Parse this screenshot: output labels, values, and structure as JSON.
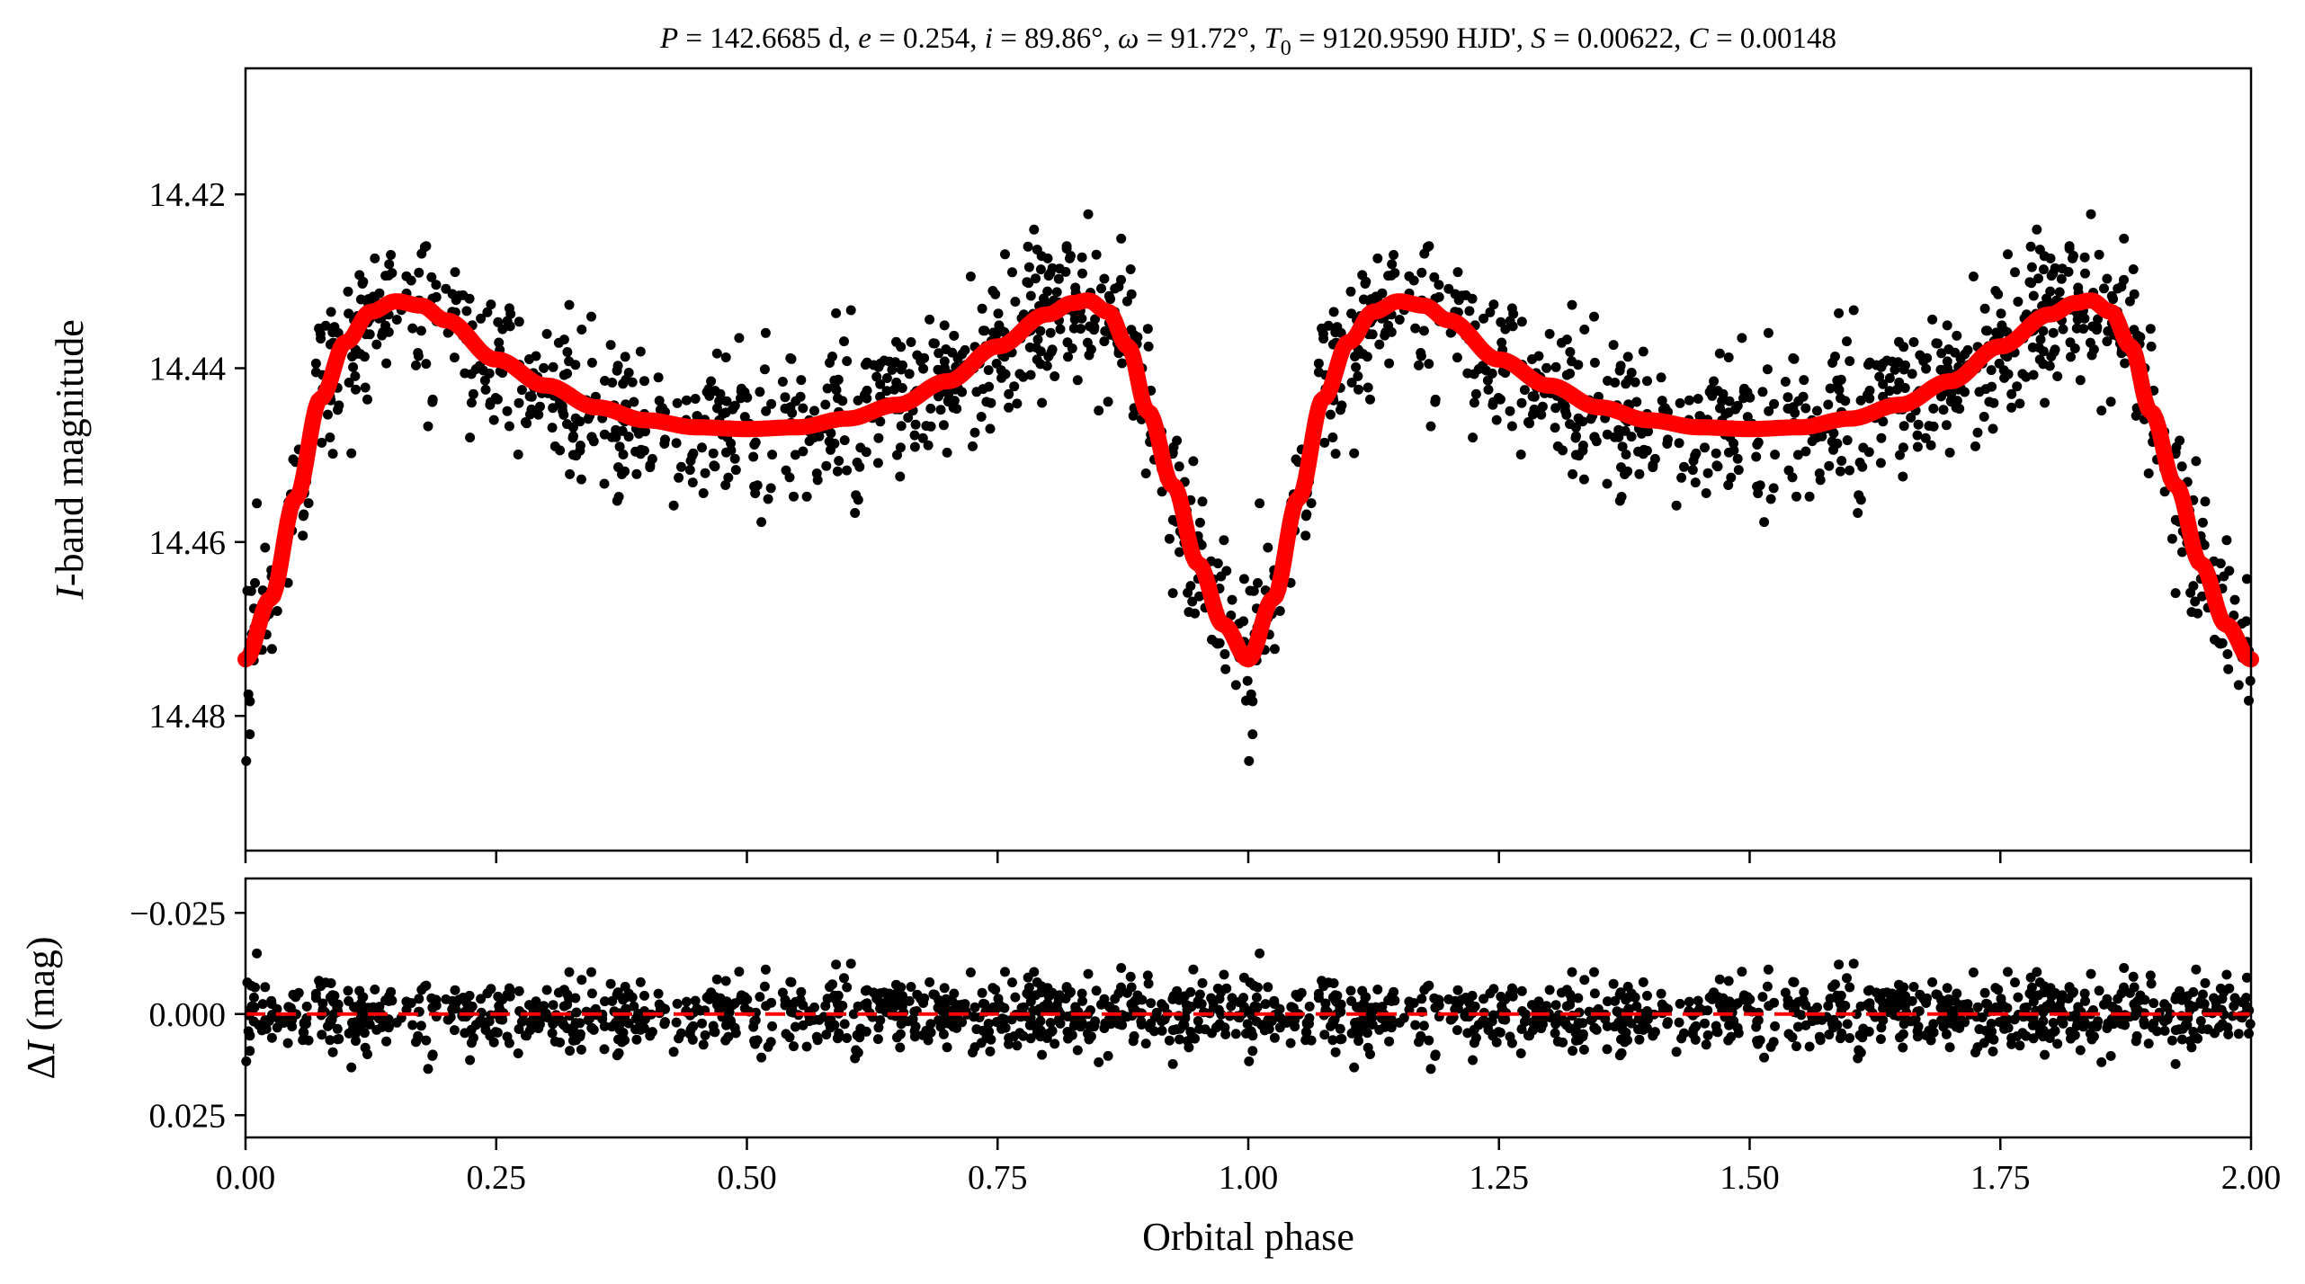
{
  "chart_data": {
    "type": "scatter",
    "title": "P = 142.6685 d, e = 0.254, i = 89.86°, ω = 91.72°, T0 = 9120.9590 HJD', S = 0.00622, C = 0.00148",
    "title_parts": {
      "P": "142.6685 d",
      "e": "0.254",
      "i": "89.86°",
      "omega": "91.72°",
      "T0": "9120.9590 HJD'",
      "S": "0.00622",
      "C": "0.00148"
    },
    "xlabel": "Orbital phase",
    "xlim": [
      0.0,
      2.0
    ],
    "x_ticks": [
      "0.00",
      "0.25",
      "0.50",
      "0.75",
      "1.00",
      "1.25",
      "1.50",
      "1.75",
      "2.00"
    ],
    "top_panel": {
      "ylabel_italic": "I",
      "ylabel_rest": "-band magnitude",
      "ylim": [
        14.4955,
        14.4055
      ],
      "y_inverted": true,
      "y_ticks": [
        "14.42",
        "14.44",
        "14.46",
        "14.48"
      ],
      "model_series": {
        "color": "#ff0000",
        "phase": [
          0.0,
          0.025,
          0.05,
          0.075,
          0.1,
          0.125,
          0.15,
          0.175,
          0.2,
          0.25,
          0.3,
          0.35,
          0.4,
          0.45,
          0.5,
          0.55,
          0.6,
          0.65,
          0.7,
          0.75,
          0.8,
          0.825,
          0.84,
          0.86,
          0.88,
          0.9,
          0.925,
          0.95,
          0.975,
          1.0
        ],
        "mag": [
          14.4735,
          14.4665,
          14.455,
          14.4435,
          14.437,
          14.4335,
          14.4323,
          14.4328,
          14.4345,
          14.439,
          14.442,
          14.4445,
          14.446,
          14.4468,
          14.447,
          14.4468,
          14.4458,
          14.4442,
          14.4415,
          14.4375,
          14.4338,
          14.4325,
          14.4322,
          14.4335,
          14.4375,
          14.445,
          14.4535,
          14.4625,
          14.4695,
          14.4735
        ]
      },
      "observations": {
        "color": "#000000",
        "n_points_per_cycle": 850,
        "scatter_sd_mag": 0.0043,
        "note_points": "dense cloud of observed I-band magnitudes around the model, repeated over phase 0-2"
      }
    },
    "bottom_panel": {
      "ylabel_delta": "Δ",
      "ylabel_italic": "I",
      "ylabel_rest": " (mag)",
      "ylim": [
        0.0305,
        -0.0335
      ],
      "y_inverted": true,
      "y_ticks": [
        "−0.025",
        "0.000",
        "0.025"
      ],
      "zero_line": {
        "value": 0.0,
        "color": "#ff0000",
        "style": "dashed"
      },
      "residuals": {
        "color": "#000000",
        "scatter_sd_mag": 0.0043
      }
    },
    "grid": false,
    "legend": "none"
  }
}
